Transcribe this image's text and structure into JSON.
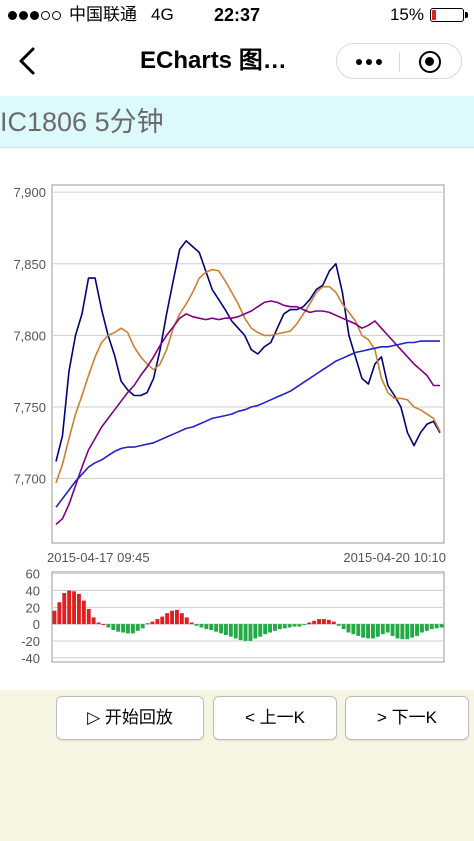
{
  "status_bar": {
    "carrier": "中国联通",
    "network": "4G",
    "time": "22:37",
    "battery_text": "15%",
    "battery_level": 0.15,
    "signal_bars": 3,
    "battery_color": "#e02020"
  },
  "nav": {
    "title": "ECharts 图…",
    "back_icon": "chevron-left-icon",
    "more_icon": "more-dots-icon",
    "close_icon": "close-circle-icon"
  },
  "header": {
    "title": "IC1806 5分钟",
    "background": "#dcf9fb"
  },
  "chart_data": [
    {
      "type": "line",
      "x_range": [
        "2015-04-17 09:45",
        "2015-04-20 10:10"
      ],
      "xlabel_start": "2015-04-17 09:45",
      "xlabel_end": "2015-04-20 10:10",
      "yticks": [
        "7,700",
        "7,750",
        "7,800",
        "7,850",
        "7,900"
      ],
      "ylim": [
        7655,
        7905
      ],
      "grid": true,
      "series": [
        {
          "color": "#000080",
          "values": [
            7712,
            7730,
            7775,
            7800,
            7815,
            7840,
            7840,
            7818,
            7800,
            7786,
            7768,
            7762,
            7758,
            7758,
            7760,
            7770,
            7790,
            7815,
            7838,
            7860,
            7866,
            7862,
            7858,
            7845,
            7832,
            7825,
            7818,
            7810,
            7805,
            7800,
            7790,
            7787,
            7792,
            7795,
            7805,
            7815,
            7818,
            7818,
            7820,
            7825,
            7832,
            7835,
            7845,
            7850,
            7830,
            7800,
            7785,
            7770,
            7766,
            7780,
            7785,
            7765,
            7758,
            7750,
            7732,
            7723,
            7732,
            7738,
            7740,
            7732
          ]
        },
        {
          "color": "#cd7f32",
          "values": [
            7697,
            7710,
            7728,
            7745,
            7758,
            7772,
            7785,
            7795,
            7800,
            7802,
            7805,
            7802,
            7792,
            7785,
            7780,
            7776,
            7780,
            7790,
            7805,
            7815,
            7822,
            7830,
            7840,
            7844,
            7846,
            7845,
            7838,
            7830,
            7822,
            7812,
            7805,
            7802,
            7800,
            7800,
            7801,
            7802,
            7803,
            7808,
            7815,
            7822,
            7830,
            7834,
            7834,
            7830,
            7822,
            7816,
            7810,
            7800,
            7797,
            7790,
            7770,
            7760,
            7756,
            7756,
            7755,
            7750,
            7748,
            7745,
            7742,
            7733
          ]
        },
        {
          "color": "#800080",
          "values": [
            7668,
            7672,
            7682,
            7695,
            7708,
            7720,
            7728,
            7736,
            7742,
            7748,
            7754,
            7760,
            7765,
            7772,
            7778,
            7785,
            7793,
            7800,
            7806,
            7812,
            7815,
            7813,
            7812,
            7811,
            7812,
            7811,
            7812,
            7812,
            7813,
            7815,
            7817,
            7820,
            7823,
            7824,
            7823,
            7821,
            7820,
            7820,
            7818,
            7816,
            7817,
            7817,
            7816,
            7814,
            7812,
            7810,
            7808,
            7805,
            7807,
            7810,
            7805,
            7800,
            7795,
            7790,
            7785,
            7780,
            7776,
            7772,
            7765,
            7765
          ]
        },
        {
          "color": "#2222cc",
          "values": [
            7680,
            7686,
            7692,
            7698,
            7703,
            7708,
            7711,
            7713,
            7716,
            7719,
            7721,
            7722,
            7722,
            7723,
            7724,
            7725,
            7727,
            7729,
            7731,
            7733,
            7735,
            7736,
            7738,
            7740,
            7742,
            7743,
            7744,
            7745,
            7747,
            7748,
            7750,
            7751,
            7753,
            7755,
            7757,
            7759,
            7761,
            7764,
            7767,
            7770,
            7773,
            7776,
            7779,
            7782,
            7784,
            7786,
            7788,
            7789,
            7790,
            7791,
            7792,
            7792,
            7793,
            7794,
            7795,
            7795,
            7796,
            7796,
            7796,
            7796
          ]
        }
      ]
    },
    {
      "type": "bar",
      "yticks": [
        "60",
        "40",
        "20",
        "0",
        "-20",
        "-40"
      ],
      "ylim": [
        -45,
        62
      ],
      "grid": true,
      "positive_color": "#e02020",
      "negative_color": "#22aa44",
      "values": [
        16,
        26,
        37,
        40,
        39,
        36,
        28,
        18,
        8,
        2,
        0,
        -4,
        -7,
        -9,
        -10,
        -11,
        -11,
        -8,
        -5,
        1,
        3,
        6,
        9,
        13,
        16,
        17,
        13,
        8,
        2,
        -2,
        -4,
        -6,
        -7,
        -9,
        -11,
        -13,
        -15,
        -17,
        -19,
        -20,
        -20,
        -17,
        -15,
        -12,
        -10,
        -8,
        -6,
        -5,
        -4,
        -3,
        -3,
        -1,
        2,
        4,
        6,
        6,
        5,
        3,
        -2,
        -6,
        -10,
        -12,
        -14,
        -16,
        -17,
        -17,
        -15,
        -12,
        -10,
        -14,
        -17,
        -18,
        -18,
        -16,
        -14,
        -10,
        -8,
        -6,
        -5,
        -4
      ]
    }
  ],
  "buttons": {
    "play": "▷ 开始回放",
    "prev": "< 上一K",
    "next": "> 下一K"
  }
}
